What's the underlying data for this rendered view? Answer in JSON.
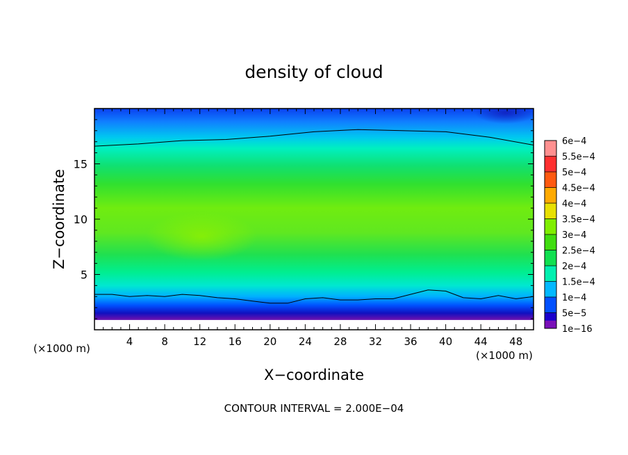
{
  "chart_data": {
    "type": "heatmap",
    "title": "density of cloud",
    "xlabel": "X−coordinate",
    "ylabel": "Z−coordinate",
    "x_unit": "(×1000 m)",
    "y_unit": "(×1000 m)",
    "footer": "CONTOUR INTERVAL = 2.000E−04",
    "xlim": [
      0,
      50
    ],
    "ylim": [
      0,
      20
    ],
    "x_ticks": [
      4,
      8,
      12,
      16,
      20,
      24,
      28,
      32,
      36,
      40,
      44,
      48
    ],
    "y_ticks": [
      5,
      10,
      15
    ],
    "colorbar": {
      "labels": [
        "6e−4",
        "5.5e−4",
        "5e−4",
        "4.5e−4",
        "4e−4",
        "3.5e−4",
        "3e−4",
        "2.5e−4",
        "2e−4",
        "1.5e−4",
        "1e−4",
        "5e−5",
        "1e−16"
      ],
      "colors": [
        "#ff9090",
        "#ff3030",
        "#ff5a10",
        "#ffaa00",
        "#e8e000",
        "#80ee00",
        "#40dd10",
        "#10e050",
        "#00f0b0",
        "#00b8ff",
        "#0050ff",
        "#1a00cc",
        "#7a10b8"
      ]
    },
    "contour_levels": [
      0.0002
    ],
    "contour_2e4_lower_height": [
      [
        0,
        3.2
      ],
      [
        2,
        3.2
      ],
      [
        4,
        3.0
      ],
      [
        6,
        3.1
      ],
      [
        8,
        3.0
      ],
      [
        10,
        3.2
      ],
      [
        12,
        3.1
      ],
      [
        14,
        2.9
      ],
      [
        16,
        2.8
      ],
      [
        18,
        2.6
      ],
      [
        20,
        2.4
      ],
      [
        22,
        2.4
      ],
      [
        24,
        2.8
      ],
      [
        26,
        2.9
      ],
      [
        28,
        2.7
      ],
      [
        30,
        2.7
      ],
      [
        32,
        2.8
      ],
      [
        34,
        2.8
      ],
      [
        36,
        3.2
      ],
      [
        38,
        3.6
      ],
      [
        40,
        3.5
      ],
      [
        42,
        2.9
      ],
      [
        44,
        2.8
      ],
      [
        46,
        3.1
      ],
      [
        48,
        2.8
      ],
      [
        50,
        3.0
      ]
    ],
    "contour_2e4_upper_height": [
      [
        0,
        16.6
      ],
      [
        5,
        16.8
      ],
      [
        10,
        17.1
      ],
      [
        15,
        17.2
      ],
      [
        20,
        17.5
      ],
      [
        25,
        17.9
      ],
      [
        30,
        18.1
      ],
      [
        35,
        18.0
      ],
      [
        40,
        17.9
      ],
      [
        45,
        17.4
      ],
      [
        50,
        16.7
      ]
    ]
  }
}
